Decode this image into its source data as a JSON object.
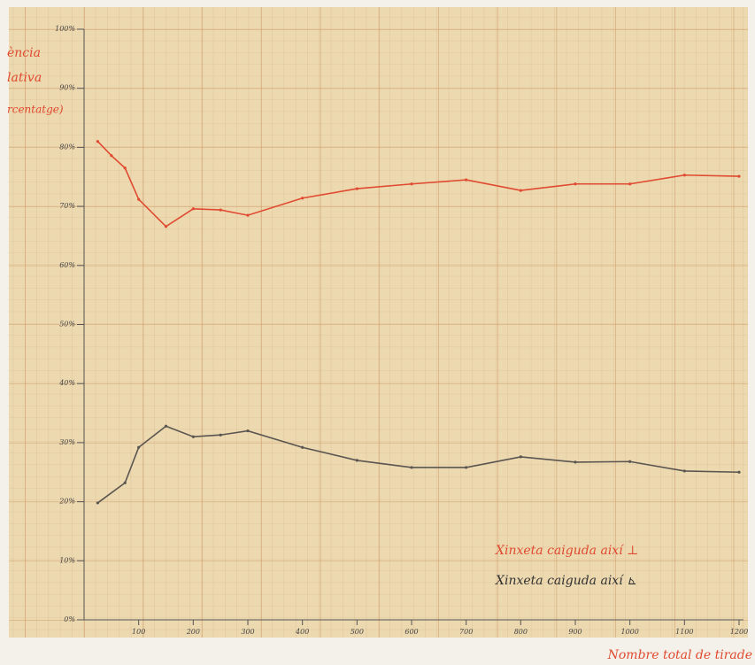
{
  "chart_data": {
    "type": "line",
    "ylabel": [
      "ència",
      "lativa",
      "rcentatge)"
    ],
    "xlabel": "Nombre total de tirade",
    "xlim": [
      0,
      1200
    ],
    "xticks": [
      100,
      200,
      300,
      400,
      500,
      600,
      700,
      800,
      900,
      1000,
      1100,
      1200
    ],
    "ylim": [
      0,
      100
    ],
    "yticks": [
      {
        "value": 0,
        "label": "0%"
      },
      {
        "value": 10,
        "label": "10%"
      },
      {
        "value": 20,
        "label": "20%"
      },
      {
        "value": 30,
        "label": "30%"
      },
      {
        "value": 40,
        "label": "40%"
      },
      {
        "value": 50,
        "label": "50%"
      },
      {
        "value": 60,
        "label": "60%"
      },
      {
        "value": 70,
        "label": "70%"
      },
      {
        "value": 80,
        "label": "80%"
      },
      {
        "value": 90,
        "label": "90%"
      },
      {
        "value": 100,
        "label": "100%"
      }
    ],
    "grid": true,
    "series": [
      {
        "name": "Xinxeta caiguda així ⊥",
        "color": "#e04a30",
        "x": [
          25,
          50,
          75,
          100,
          150,
          200,
          250,
          300,
          400,
          500,
          600,
          700,
          800,
          900,
          1000,
          1100,
          1200
        ],
        "values": [
          81,
          78.6,
          76.5,
          71.2,
          66.6,
          69.6,
          69.4,
          68.5,
          71.4,
          73,
          73.8,
          74.5,
          72.7,
          73.8,
          73.8,
          75.3,
          75.1
        ]
      },
      {
        "name": "Xinxeta caiguda així ⊾",
        "color": "#5a5550",
        "x": [
          25,
          75,
          100,
          150,
          200,
          250,
          300,
          400,
          500,
          600,
          700,
          800,
          900,
          1000,
          1100,
          1200
        ],
        "values": [
          19.8,
          23.2,
          29.2,
          32.8,
          31,
          31.3,
          32,
          29.2,
          27,
          25.8,
          25.8,
          27.6,
          26.7,
          26.8,
          25.2,
          25
        ]
      }
    ]
  }
}
